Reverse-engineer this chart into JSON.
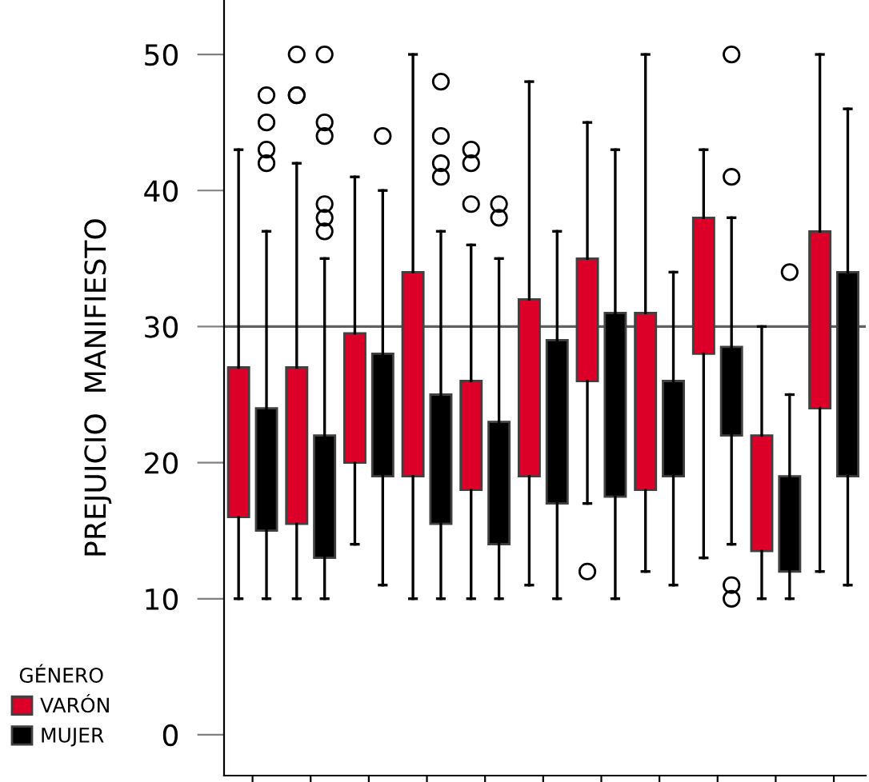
{
  "chart_data": {
    "type": "box",
    "ylabel": "PREJUICIO  MANIFIESTO",
    "legend_title": "GÉNERO",
    "legend": "bottom left",
    "categories": [
      null,
      null,
      null,
      null,
      null,
      null,
      null,
      null,
      null,
      null,
      null
    ],
    "ylim": [
      -3,
      54
    ],
    "yticks": [
      0,
      10,
      20,
      30,
      40,
      50
    ],
    "grid": false,
    "ref_lines": [
      {
        "axis": "y",
        "value": 30,
        "color": "#606060"
      }
    ],
    "series": [
      {
        "name": "VARÓN",
        "color": "#dc0028",
        "boxes": [
          {
            "low": 10,
            "q1": 16,
            "median": null,
            "q3": 27,
            "high": 43
          },
          {
            "low": 10,
            "q1": 15.5,
            "median": null,
            "q3": 27,
            "high": 42,
            "outliers": [
              47,
              47,
              50
            ]
          },
          {
            "low": 14,
            "q1": 20,
            "median": null,
            "q3": 29.5,
            "high": 41
          },
          {
            "low": 10,
            "q1": 19,
            "median": null,
            "q3": 34,
            "high": 50
          },
          {
            "low": 10,
            "q1": 18,
            "median": null,
            "q3": 26,
            "high": 36,
            "outliers": [
              43,
              42,
              39
            ]
          },
          {
            "low": 11,
            "q1": 19,
            "median": null,
            "q3": 32,
            "high": 48
          },
          {
            "low": 17,
            "q1": 26,
            "median": null,
            "q3": 35,
            "high": 45,
            "outliers": [
              12
            ]
          },
          {
            "low": 12,
            "q1": 18,
            "median": null,
            "q3": 31,
            "high": 50
          },
          {
            "low": 13,
            "q1": 28,
            "median": null,
            "q3": 38,
            "high": 43
          },
          {
            "low": 10,
            "q1": 13.5,
            "median": null,
            "q3": 22,
            "high": 30
          },
          {
            "low": 12,
            "q1": 24,
            "median": null,
            "q3": 37,
            "high": 50
          }
        ]
      },
      {
        "name": "MUJER",
        "color": "#000000",
        "boxes": [
          {
            "low": 10,
            "q1": 15,
            "median": null,
            "q3": 24,
            "high": 37,
            "outliers": [
              47,
              45,
              43,
              42
            ]
          },
          {
            "low": 10,
            "q1": 13,
            "median": null,
            "q3": 22,
            "high": 35,
            "outliers": [
              50,
              45,
              44,
              39,
              38,
              37
            ]
          },
          {
            "low": 11,
            "q1": 19,
            "median": null,
            "q3": 28,
            "high": 40,
            "outliers": [
              44
            ]
          },
          {
            "low": 10,
            "q1": 15.5,
            "median": null,
            "q3": 25,
            "high": 37,
            "outliers": [
              48,
              44,
              42,
              41
            ]
          },
          {
            "low": 10,
            "q1": 14,
            "median": null,
            "q3": 23,
            "high": 35,
            "outliers": [
              39,
              38
            ]
          },
          {
            "low": 10,
            "q1": 17,
            "median": null,
            "q3": 29,
            "high": 37
          },
          {
            "low": 10,
            "q1": 17.5,
            "median": null,
            "q3": 31,
            "high": 43
          },
          {
            "low": 11,
            "q1": 19,
            "median": null,
            "q3": 26,
            "high": 34
          },
          {
            "low": 14,
            "q1": 22,
            "median": null,
            "q3": 28.5,
            "high": 38,
            "outliers": [
              50,
              41,
              11,
              10
            ]
          },
          {
            "low": 10,
            "q1": 12,
            "median": null,
            "q3": 19,
            "high": 25,
            "outliers": [
              34
            ]
          },
          {
            "low": 11,
            "q1": 19,
            "median": null,
            "q3": 34,
            "high": 46
          }
        ]
      }
    ]
  }
}
